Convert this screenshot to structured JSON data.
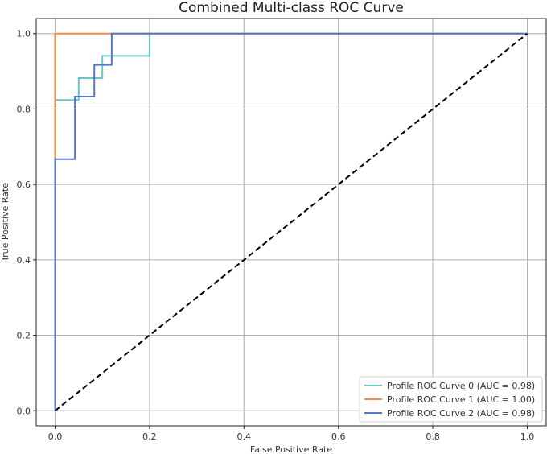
{
  "chart_data": {
    "type": "line",
    "title": "Combined Multi-class ROC Curve",
    "xlabel": "False Positive Rate",
    "ylabel": "True Positive Rate",
    "xlim": [
      -0.04,
      1.04
    ],
    "ylim": [
      -0.04,
      1.04
    ],
    "xticks": [
      0.0,
      0.2,
      0.4,
      0.6,
      0.8,
      1.0
    ],
    "yticks": [
      0.0,
      0.2,
      0.4,
      0.6,
      0.8,
      1.0
    ],
    "xtick_labels": [
      "0.0",
      "0.2",
      "0.4",
      "0.6",
      "0.8",
      "1.0"
    ],
    "ytick_labels": [
      "0.0",
      "0.2",
      "0.4",
      "0.6",
      "0.8",
      "1.0"
    ],
    "grid": true,
    "legend_position": "lower-right",
    "series": [
      {
        "name": "Profile ROC Curve 0 (AUC = 0.98)",
        "color": "#6cc4c4",
        "x": [
          0.0,
          0.0,
          0.05,
          0.05,
          0.1,
          0.1,
          0.2,
          0.2,
          1.0
        ],
        "y": [
          0.0,
          0.824,
          0.824,
          0.882,
          0.882,
          0.941,
          0.941,
          1.0,
          1.0
        ]
      },
      {
        "name": "Profile ROC Curve 1 (AUC = 1.00)",
        "color": "#f28c38",
        "x": [
          0.0,
          0.0,
          0.0,
          1.0
        ],
        "y": [
          0.0,
          0.667,
          1.0,
          1.0
        ]
      },
      {
        "name": "Profile ROC Curve 2 (AUC = 0.98)",
        "color": "#5578c8",
        "x": [
          0.0,
          0.0,
          0.042,
          0.042,
          0.083,
          0.083,
          0.1,
          0.1,
          0.12,
          0.12,
          1.0
        ],
        "y": [
          0.0,
          0.667,
          0.667,
          0.833,
          0.833,
          0.917,
          0.917,
          0.917,
          0.917,
          1.0,
          1.0
        ]
      }
    ],
    "reference_line": {
      "x": [
        0.0,
        1.0
      ],
      "y": [
        0.0,
        1.0
      ],
      "color": "#000000",
      "style": "dashed"
    }
  }
}
